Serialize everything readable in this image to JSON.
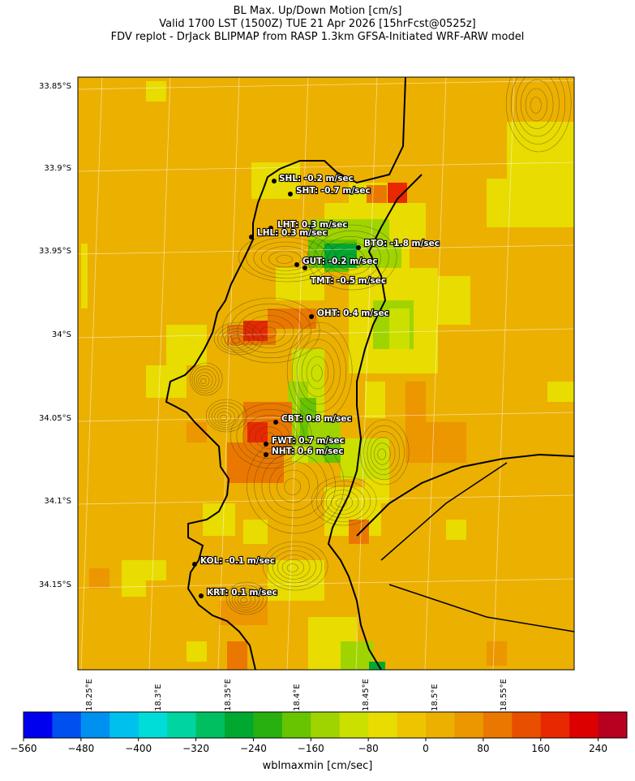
{
  "title": {
    "line1": "BL Max. Up/Down Motion [cm/s]",
    "line2": "Valid 1700 LST (1500Z) TUE 21 Apr 2026 [15hrFcst@0525z]",
    "line3": "FDV replot - DrJack BLIPMAP from RASP 1.3km GFSA-Initiated WRF-ARW model"
  },
  "axes": {
    "lat_labels": [
      "33.85°S",
      "33.9°S",
      "33.95°S",
      "34°S",
      "34.05°S",
      "34.1°S",
      "34.15°S"
    ],
    "lon_labels": [
      "18.25°E",
      "18.3°E",
      "18.35°E",
      "18.4°E",
      "18.45°E",
      "18.5°E",
      "18.55°E"
    ]
  },
  "colorbar": {
    "label": "wblmaxmin [cm/sec]",
    "ticks": [
      "−560",
      "−480",
      "−400",
      "−320",
      "−240",
      "−160",
      "−80",
      "0",
      "80",
      "160",
      "240"
    ],
    "colors": [
      "#0000ee",
      "#0050f0",
      "#0090f0",
      "#00c0ee",
      "#00dcd8",
      "#00d4a0",
      "#00bf60",
      "#00a830",
      "#28b010",
      "#68c400",
      "#a0d400",
      "#cce000",
      "#e8dc00",
      "#eec400",
      "#ecb000",
      "#ec9600",
      "#ea7800",
      "#e85000",
      "#e82800",
      "#dc0000",
      "#b80020"
    ]
  },
  "stations": [
    {
      "code": "SHL",
      "label": "SHL: -0.2 m/sec"
    },
    {
      "code": "SHT",
      "label": "SHT: -0.7 m/sec"
    },
    {
      "code": "LHT",
      "label": "LHT: 0.3 m/sec"
    },
    {
      "code": "LHL",
      "label": "LHL: 0.3 m/sec"
    },
    {
      "code": "BTO",
      "label": "BTO: -1.8 m/sec"
    },
    {
      "code": "GUT",
      "label": "GUT: -0.2 m/sec"
    },
    {
      "code": "TMT",
      "label": "TMT: -0.5 m/sec"
    },
    {
      "code": "OHT",
      "label": "OHT: 0.4 m/sec"
    },
    {
      "code": "CBT",
      "label": "CBT: 0.8 m/sec"
    },
    {
      "code": "FWT",
      "label": "FWT: 0.7 m/sec"
    },
    {
      "code": "NHT",
      "label": "NHT: 0.6 m/sec"
    },
    {
      "code": "KOL",
      "label": "KOL: -0.1 m/sec"
    },
    {
      "code": "KRT",
      "label": "KRT: 0.1 m/sec"
    }
  ],
  "palette": {
    "base": "#ecb000",
    "yellow": "#e8dc00",
    "light_yellow": "#cce000",
    "orange": "#ec9600",
    "dark_orange": "#ea7800",
    "red": "#e82800",
    "green_light": "#a0d400",
    "green": "#68c400",
    "green_dark": "#00a830",
    "green_mid": "#28b010"
  }
}
